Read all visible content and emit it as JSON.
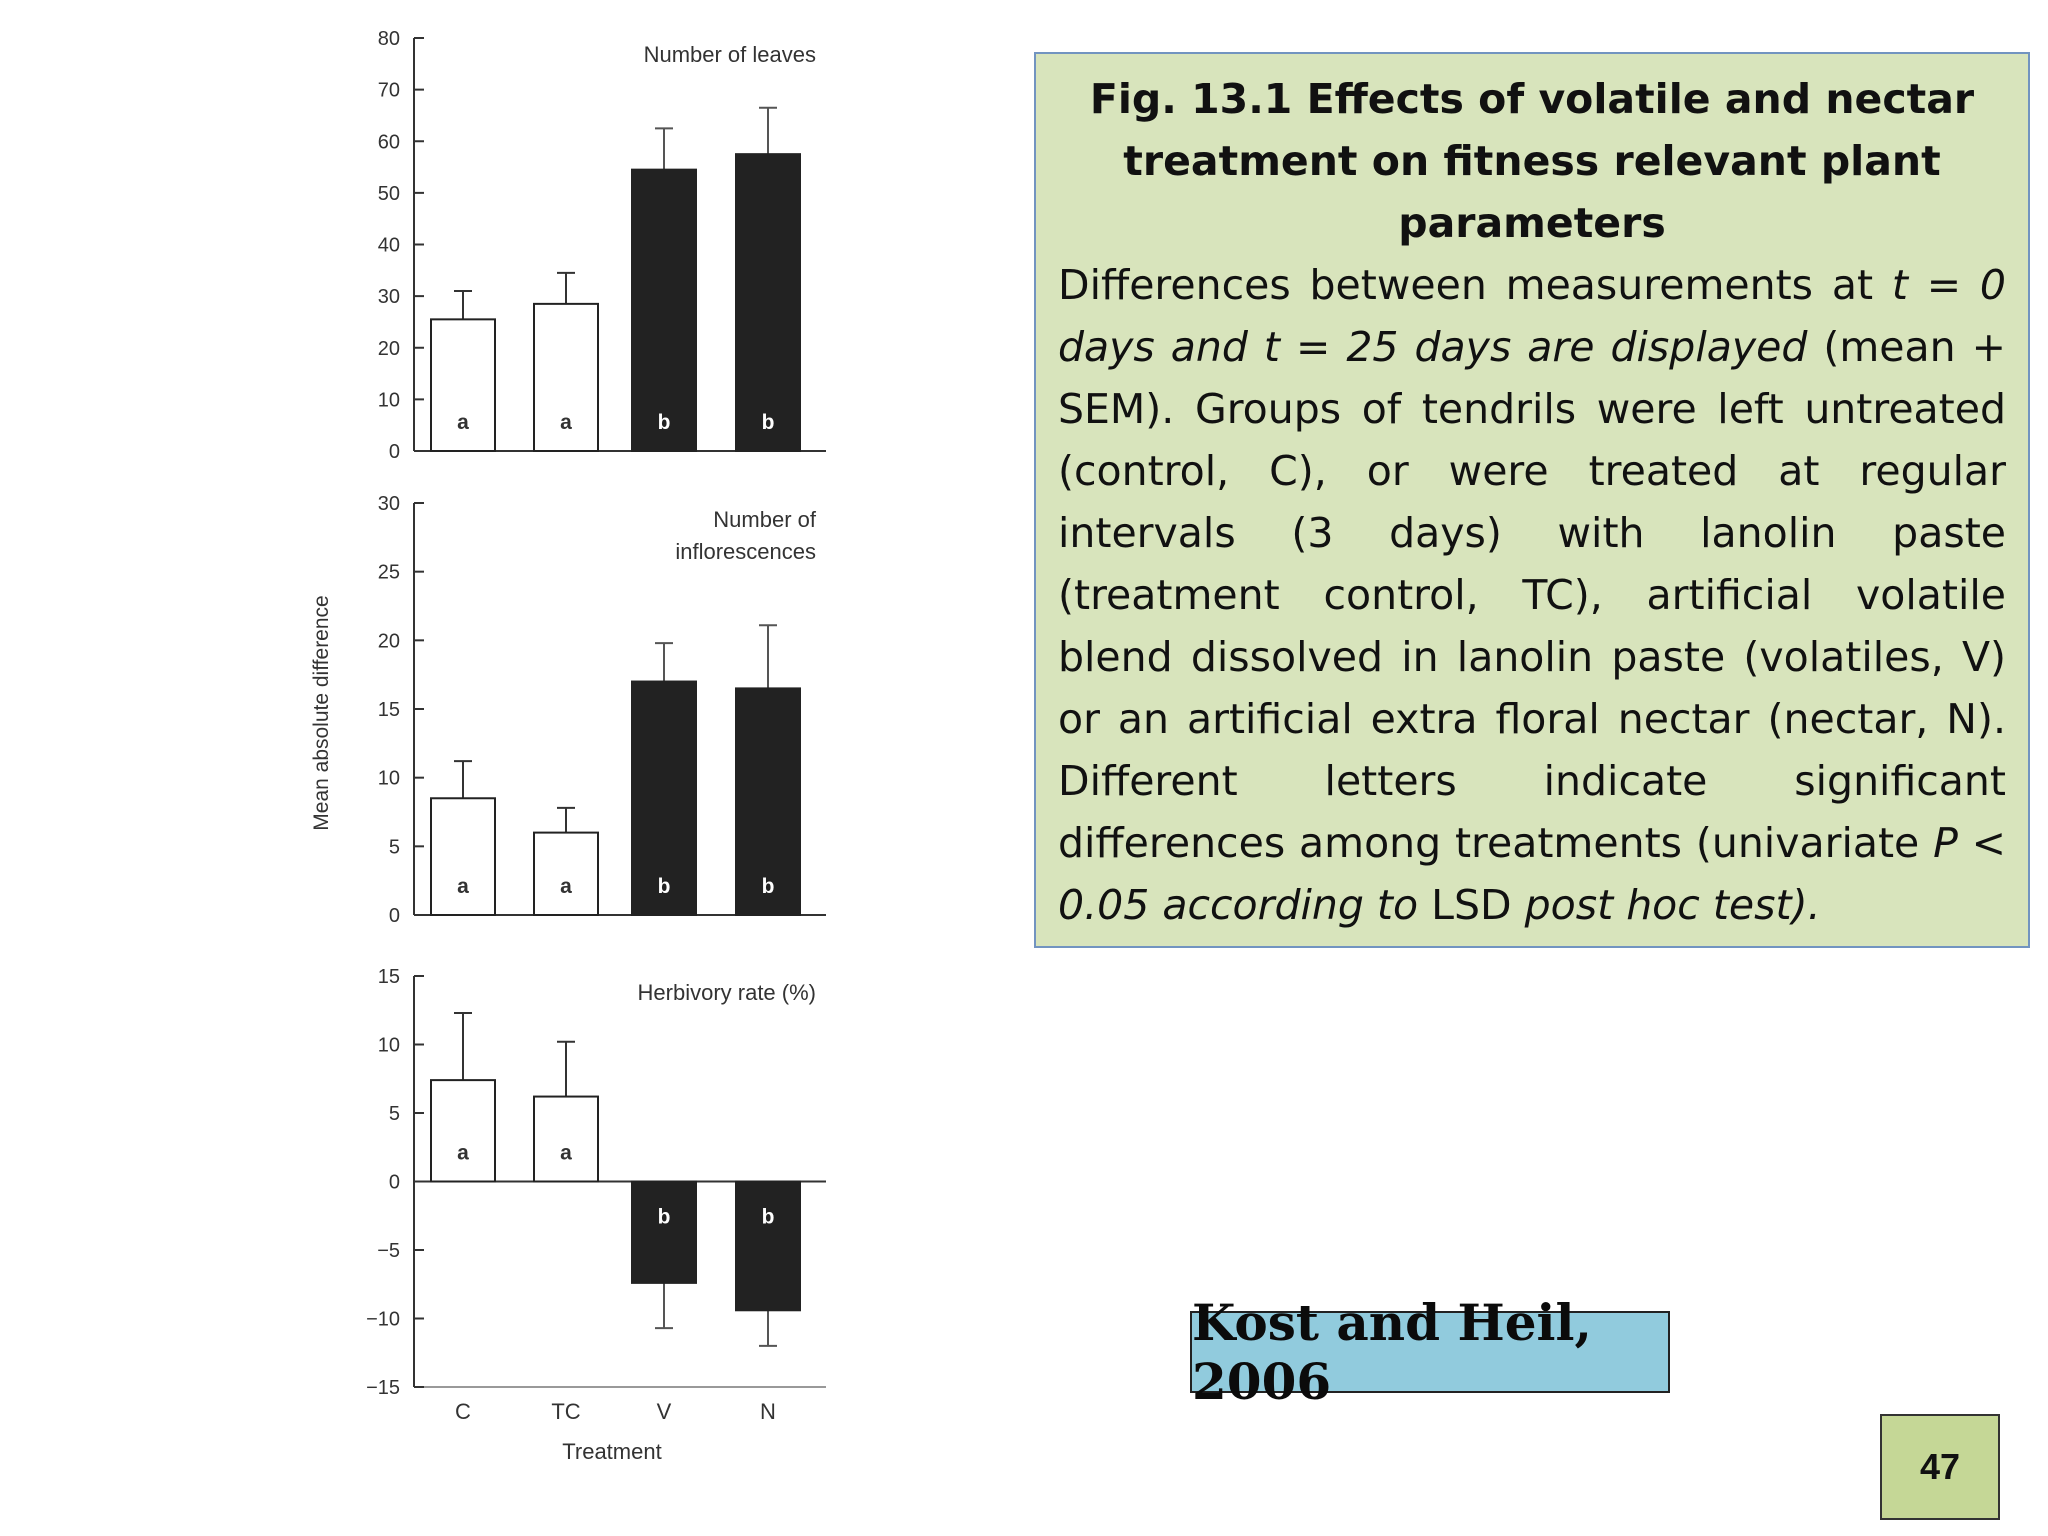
{
  "caption": {
    "title": "Fig. 13.1  Effects of volatile and nectar treatment on fitness relevant plant parameters",
    "body_parts": [
      {
        "text": "Differences between measurements at ",
        "italic": false
      },
      {
        "text": "t = 0 days and t = 25 days are displayed",
        "italic": true
      },
      {
        "text": " (mean + SEM). Groups of tendrils were left untreated (control, C), or were treated at regular intervals (3 days) with lanolin paste (treatment control, TC), artificial volatile blend dissolved in lanolin paste (volatiles, V) or an artificial extra floral nectar (nectar, N). Different letters indicate significant differences among treatments (univariate ",
        "italic": false
      },
      {
        "text": "P < 0.05 according to ",
        "italic": true
      },
      {
        "text": "LSD ",
        "italic": false
      },
      {
        "text": "post hoc test).",
        "italic": true
      }
    ]
  },
  "citation": "Kost and Heil, 2006",
  "page_number": "47",
  "colors": {
    "caption_bg": "#d8e4bc",
    "caption_border": "#7294c0",
    "citation_bg": "#91cbdd",
    "page_number_bg": "#c5d796",
    "bar_open": "#ffffff",
    "bar_filled": "#222222"
  },
  "chart_data": [
    {
      "type": "bar",
      "title": "Number of leaves",
      "categories": [
        "C",
        "TC",
        "V",
        "N"
      ],
      "values": [
        25.5,
        28.5,
        54.5,
        57.5
      ],
      "errors": [
        5.5,
        6,
        8,
        9
      ],
      "letters": [
        "a",
        "a",
        "b",
        "b"
      ],
      "fills": [
        "open",
        "open",
        "filled",
        "filled"
      ],
      "ylim": [
        0,
        80
      ],
      "yticks": [
        0,
        10,
        20,
        30,
        40,
        50,
        60,
        70,
        80
      ],
      "ytick_labels": [
        "0",
        "10",
        "20",
        "30",
        "40",
        "50",
        "60",
        "70",
        "80"
      ]
    },
    {
      "type": "bar",
      "title": "Number of inflorescences",
      "title_lines": [
        "Number of",
        "inflorescences"
      ],
      "categories": [
        "C",
        "TC",
        "V",
        "N"
      ],
      "values": [
        8.5,
        6,
        17,
        16.5
      ],
      "errors": [
        2.7,
        1.8,
        2.8,
        4.6
      ],
      "letters": [
        "a",
        "a",
        "b",
        "b"
      ],
      "fills": [
        "open",
        "open",
        "filled",
        "filled"
      ],
      "ylim": [
        0,
        30
      ],
      "yticks": [
        0,
        5,
        10,
        15,
        20,
        25,
        30
      ],
      "ytick_labels": [
        "0",
        "5",
        "10",
        "15",
        "20",
        "25",
        "30"
      ]
    },
    {
      "type": "bar",
      "title": "Herbivory rate (%)",
      "categories": [
        "C",
        "TC",
        "V",
        "N"
      ],
      "values": [
        7.4,
        6.2,
        -7.4,
        -9.4
      ],
      "errors": [
        4.9,
        4.0,
        3.3,
        2.6
      ],
      "letters": [
        "a",
        "a",
        "b",
        "b"
      ],
      "fills": [
        "open",
        "open",
        "filled",
        "filled"
      ],
      "ylim": [
        -15,
        15
      ],
      "yticks": [
        -15,
        -10,
        -5,
        0,
        5,
        10,
        15
      ],
      "ytick_labels": [
        "−15",
        "−10",
        "−5",
        "0",
        "5",
        "10",
        "15"
      ],
      "xlabel": "Treatment"
    }
  ],
  "shared_ylabel": "Mean absolute difference"
}
